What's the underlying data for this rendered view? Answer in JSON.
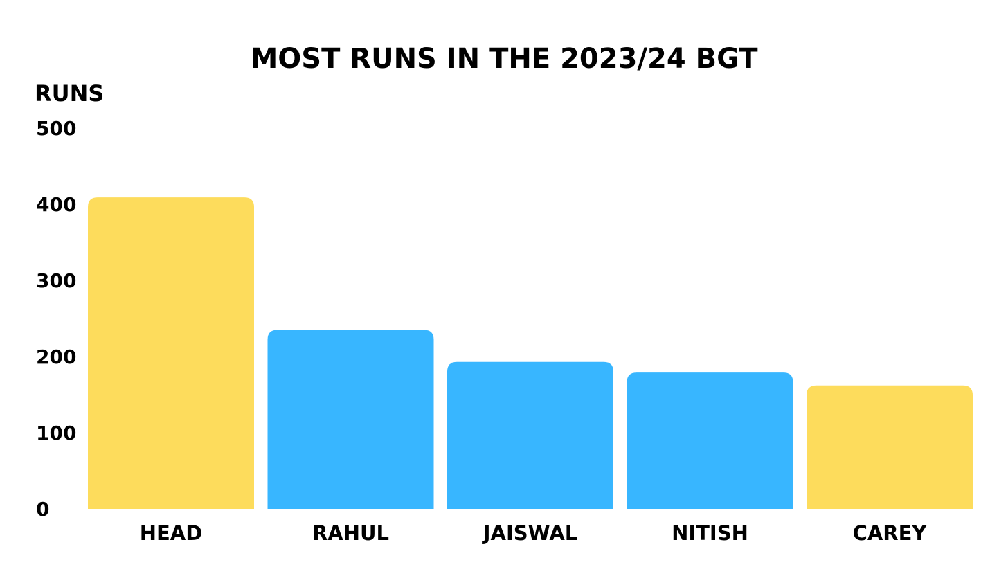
{
  "chart_data": {
    "type": "bar",
    "title": "MOST RUNS IN THE 2023/24 BGT",
    "xlabel": "",
    "ylabel": "RUNS",
    "ylim": [
      0,
      500
    ],
    "yticks": [
      0,
      100,
      200,
      300,
      400,
      500
    ],
    "categories": [
      "HEAD",
      "RAHUL",
      "JAISWAL",
      "NITISH",
      "CAREY"
    ],
    "values": [
      409,
      235,
      193,
      179,
      162
    ],
    "bar_colors": [
      "#fddc5c",
      "#38b6ff",
      "#38b6ff",
      "#38b6ff",
      "#fddc5c"
    ],
    "grid": false,
    "legend": "none"
  }
}
